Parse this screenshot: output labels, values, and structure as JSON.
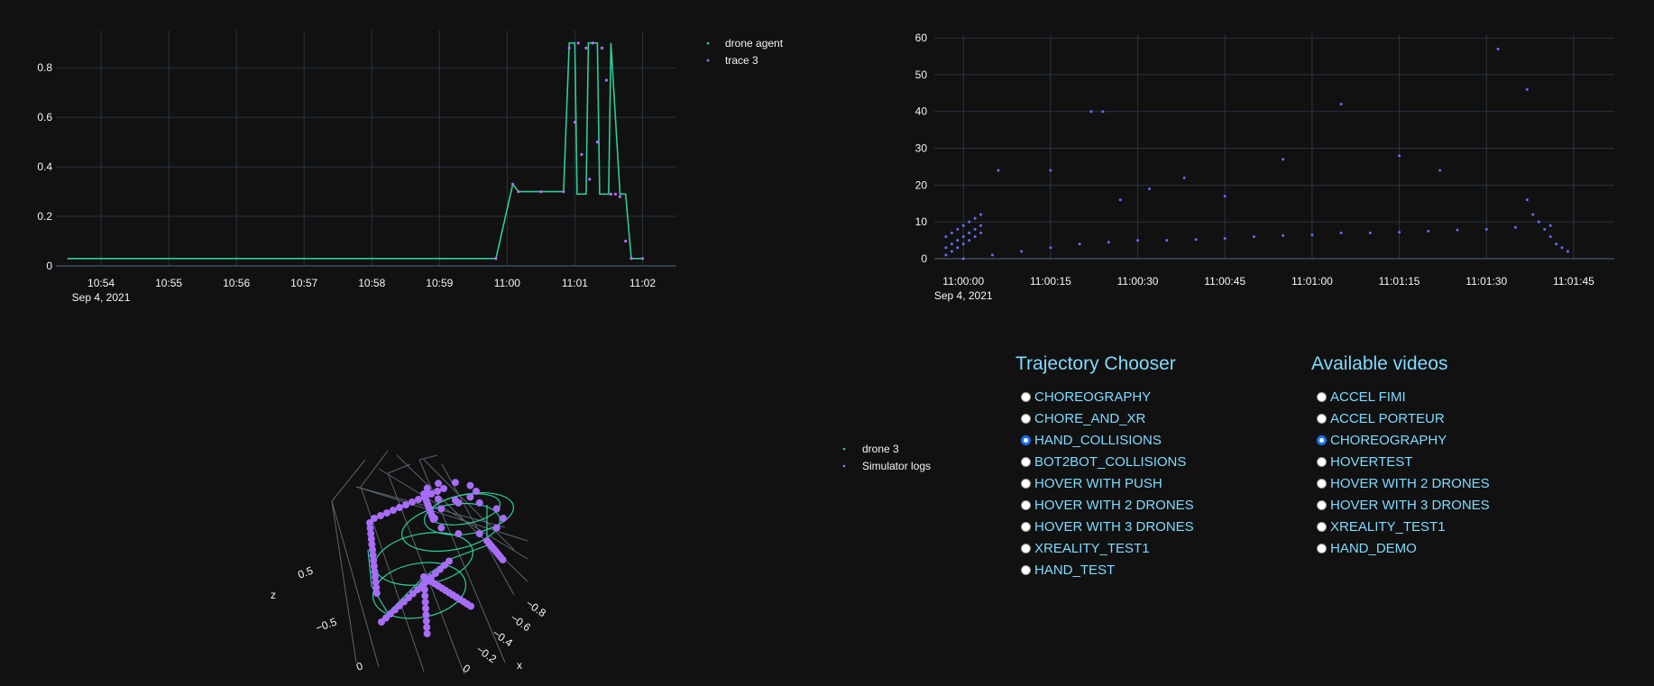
{
  "chart_data": [
    {
      "type": "line",
      "x_ticks": [
        "10:54",
        "10:55",
        "10:56",
        "10:57",
        "10:58",
        "10:59",
        "11:00",
        "11:01",
        "11:02"
      ],
      "x_date_label": "Sep 4, 2021",
      "y_ticks": [
        "0",
        "0.2",
        "0.4",
        "0.6",
        "0.8"
      ],
      "xlim": [
        "10:53:20",
        "10:62:30"
      ],
      "ylim": [
        0,
        0.95
      ],
      "grid": true,
      "legend_position": "right",
      "series": [
        {
          "name": "drone agent",
          "color": "#2ecc9a",
          "mode": "line",
          "x": [
            "10:53:30",
            "10:59:50",
            "11:00:05",
            "11:00:10",
            "11:00:50",
            "11:00:55",
            "11:01:00",
            "11:01:02",
            "11:01:10",
            "11:01:12",
            "11:01:20",
            "11:01:22",
            "11:01:30",
            "11:01:32",
            "11:01:40",
            "11:01:45",
            "11:01:50",
            "11:02:00"
          ],
          "y": [
            0.03,
            0.03,
            0.33,
            0.3,
            0.3,
            0.9,
            0.9,
            0.29,
            0.29,
            0.9,
            0.9,
            0.29,
            0.29,
            0.9,
            0.29,
            0.29,
            0.03,
            0.03
          ]
        },
        {
          "name": "trace 3",
          "color": "#b76cf0",
          "mode": "markers",
          "x": [
            "10:59:50",
            "11:00:05",
            "11:00:10",
            "11:00:30",
            "11:00:50",
            "11:00:55",
            "11:01:00",
            "11:01:03",
            "11:01:06",
            "11:01:10",
            "11:01:13",
            "11:01:16",
            "11:01:20",
            "11:01:24",
            "11:01:28",
            "11:01:32",
            "11:01:36",
            "11:01:40",
            "11:01:45",
            "11:01:50",
            "11:02:00"
          ],
          "y": [
            0.03,
            0.33,
            0.3,
            0.3,
            0.3,
            0.88,
            0.58,
            0.9,
            0.45,
            0.88,
            0.35,
            0.9,
            0.5,
            0.88,
            0.75,
            0.29,
            0.29,
            0.28,
            0.1,
            0.03,
            0.03
          ]
        }
      ]
    },
    {
      "type": "scatter",
      "x_ticks": [
        "11:00:00",
        "11:00:15",
        "11:00:30",
        "11:00:45",
        "11:01:00",
        "11:01:15",
        "11:01:30",
        "11:01:45"
      ],
      "x_date_label": "Sep 4, 2021",
      "y_ticks": [
        "0",
        "10",
        "20",
        "30",
        "40",
        "50",
        "60"
      ],
      "xlim": [
        "10:59:55",
        "11:01:52"
      ],
      "ylim": [
        0,
        61
      ],
      "grid": true,
      "series": [
        {
          "color": "#636efa",
          "x": [
            -3,
            -2,
            -1,
            0,
            1,
            2,
            3,
            -3,
            -2,
            -1,
            0,
            1,
            2,
            3,
            -3,
            -2,
            -1,
            0,
            1,
            2,
            3,
            0,
            5,
            10,
            15,
            20,
            25,
            30,
            35,
            40,
            45,
            50,
            55,
            60,
            65,
            70,
            75,
            80,
            85,
            90,
            95,
            97,
            98,
            99,
            100,
            101,
            102,
            103,
            104,
            6,
            15,
            22,
            24,
            27,
            32,
            38,
            45,
            55,
            65,
            75,
            82,
            92,
            97,
            99,
            101
          ],
          "y": [
            6,
            7,
            8,
            9,
            10,
            11,
            12,
            3,
            4,
            5,
            6,
            7,
            8,
            9,
            1,
            2,
            3,
            4,
            5,
            6,
            7,
            0,
            1,
            2,
            3,
            4,
            4.5,
            5,
            5,
            5.2,
            5.5,
            6,
            6.3,
            6.5,
            7,
            7,
            7.2,
            7.5,
            7.8,
            8,
            8.5,
            16,
            12,
            10,
            8,
            6,
            4,
            3,
            2,
            24,
            24,
            40,
            40,
            16,
            19,
            22,
            17,
            27,
            42,
            28,
            24,
            57,
            46,
            10,
            9
          ],
          "note_units": "x in seconds after 11:00:00"
        }
      ]
    },
    {
      "type": "scatter",
      "axis_labels": {
        "z": "z",
        "x": "x"
      },
      "z_ticks": [
        "0.5"
      ],
      "y_ticks": [
        "−0.5",
        "0"
      ],
      "x_ticks": [
        "0",
        "−0.2",
        "−0.4",
        "−0.6",
        "−0.8"
      ],
      "legend_position": "left",
      "series": [
        {
          "name": "drone 3",
          "color": "#2ecc9a",
          "mode": "line"
        },
        {
          "name": "Simulator logs",
          "color": "#a76df7",
          "mode": "markers"
        }
      ]
    }
  ],
  "trajectory": {
    "title": "Trajectory Chooser",
    "options": [
      "CHOREOGRAPHY",
      "CHORE_AND_XR",
      "HAND_COLLISIONS",
      "BOT2BOT_COLLISIONS",
      "HOVER WITH PUSH",
      "HOVER WITH 2 DRONES",
      "HOVER WITH 3 DRONES",
      "XREALITY_TEST1",
      "HAND_TEST"
    ],
    "selected": "HAND_COLLISIONS"
  },
  "videos": {
    "title": "Available videos",
    "options": [
      "ACCEL FIMI",
      "ACCEL PORTEUR",
      "CHOREOGRAPHY",
      "HOVERTEST",
      "HOVER WITH 2 DRONES",
      "HOVER WITH 3 DRONES",
      "XREALITY_TEST1",
      "HAND_DEMO"
    ],
    "selected": "CHOREOGRAPHY"
  },
  "colors": {
    "background": "#111111",
    "grid": "#283442",
    "text": "#f2f5fa",
    "accent": "#7fdbff"
  }
}
